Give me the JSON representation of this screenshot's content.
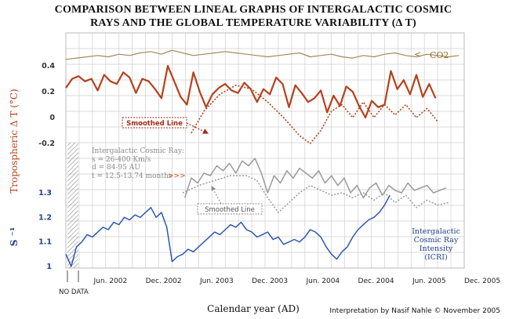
{
  "title": {
    "line1": "COMPARISON BETWEEN LINEAL GRAPHS OF INTERGALACTIC COSMIC",
    "line2": "RAYS AND THE GLOBAL TEMPERATURE VARIABILITY (Δ T)"
  },
  "credit": "Interpretation by Nasif Nahle © November 2005",
  "xlabel": "Calendar year (AD)",
  "ylabel_temp": "Tropospheric Δ T (°C)",
  "ylabel_icri": "S ⁻¹",
  "no_data_label": "NO DATA",
  "co2_label": "CO2",
  "co2_arrow": "<",
  "smoothed_red_label": "Smoothed Line",
  "smoothed_grey_label": "Smoothed Line",
  "gcr_info": {
    "line1": "Intergalactic Cosmic Ray:",
    "line2": "s = 26-400 Km/s",
    "line3": "d = 84-95 AU",
    "line4": "t = 12.5-13.74 months",
    "arrows": ">>>"
  },
  "icri_label": {
    "line1": "Intergalactic",
    "line2": "Cosmic Ray",
    "line3": "Intensity",
    "line4": "(ICRI)"
  },
  "colors": {
    "temperature": "#b5411c",
    "co2": "#a08a5a",
    "gcr": "#9a9a9a",
    "icri": "#2e58b0",
    "grid": "#cfcfcf"
  },
  "chart_data": {
    "type": "line",
    "x_ticks": [
      "Jun. 2002",
      "Dec. 2002",
      "Jun. 2003",
      "Dec. 2003",
      "Jun. 2004",
      "Dec. 2004",
      "Jun. 2005",
      "Dec. 2005"
    ],
    "y_ticks_temp": [
      "0.4",
      "0.2",
      "0",
      "-0.2"
    ],
    "y_ticks_icri": [
      "1.3",
      "1.2",
      "1.1",
      "1"
    ],
    "series": [
      {
        "name": "CO2",
        "x": [
          2002.0,
          2002.1,
          2002.2,
          2002.3,
          2002.4,
          2002.5,
          2002.6,
          2002.7,
          2002.8,
          2002.9,
          2003.0,
          2003.1,
          2003.2,
          2003.3,
          2003.4,
          2003.5,
          2003.6,
          2003.7,
          2003.8,
          2003.9,
          2004.0,
          2004.1,
          2004.2,
          2004.3,
          2004.4,
          2004.5,
          2004.6,
          2004.7,
          2004.8,
          2004.9,
          2005.0,
          2005.1,
          2005.2,
          2005.3,
          2005.4,
          2005.5,
          2005.6,
          2005.7
        ],
        "y": [
          0.45,
          0.46,
          0.47,
          0.48,
          0.47,
          0.49,
          0.48,
          0.5,
          0.51,
          0.49,
          0.52,
          0.5,
          0.48,
          0.49,
          0.5,
          0.51,
          0.5,
          0.49,
          0.48,
          0.47,
          0.48,
          0.49,
          0.5,
          0.47,
          0.48,
          0.49,
          0.47,
          0.46,
          0.48,
          0.47,
          0.49,
          0.5,
          0.48,
          0.47,
          0.49,
          0.48,
          0.47,
          0.48
        ]
      },
      {
        "name": "Tropospheric ΔT",
        "x": [
          2002.0,
          2002.06,
          2002.12,
          2002.18,
          2002.24,
          2002.3,
          2002.36,
          2002.42,
          2002.48,
          2002.54,
          2002.6,
          2002.66,
          2002.72,
          2002.78,
          2002.84,
          2002.9,
          2002.96,
          2003.02,
          2003.08,
          2003.14,
          2003.2,
          2003.26,
          2003.32,
          2003.38,
          2003.44,
          2003.5,
          2003.56,
          2003.62,
          2003.68,
          2003.74,
          2003.8,
          2003.86,
          2003.92,
          2003.98,
          2004.04,
          2004.1,
          2004.16,
          2004.22,
          2004.28,
          2004.34,
          2004.4,
          2004.46,
          2004.52,
          2004.58,
          2004.64,
          2004.7,
          2004.76,
          2004.82,
          2004.88,
          2004.94,
          2005.0,
          2005.06,
          2005.12,
          2005.18,
          2005.24,
          2005.3,
          2005.36,
          2005.42,
          2005.48
        ],
        "y": [
          0.23,
          0.3,
          0.32,
          0.28,
          0.3,
          0.21,
          0.33,
          0.28,
          0.26,
          0.35,
          0.31,
          0.19,
          0.3,
          0.28,
          0.22,
          0.15,
          0.4,
          0.28,
          0.16,
          0.1,
          0.35,
          0.2,
          0.08,
          0.18,
          0.23,
          0.26,
          0.21,
          0.19,
          0.27,
          0.22,
          0.12,
          0.22,
          0.18,
          0.31,
          0.26,
          0.08,
          0.25,
          0.19,
          0.12,
          0.15,
          0.21,
          0.04,
          0.17,
          0.09,
          0.24,
          0.2,
          0.09,
          0.0,
          0.13,
          0.08,
          0.1,
          0.36,
          0.22,
          0.29,
          0.18,
          0.33,
          0.16,
          0.26,
          0.15
        ]
      },
      {
        "name": "Smoothed Line (ΔT)",
        "x": [
          2003.18,
          2003.3,
          2003.45,
          2003.6,
          2003.75,
          2003.9,
          2004.05,
          2004.2,
          2004.3,
          2004.4,
          2004.5,
          2004.6,
          2004.7,
          2004.8,
          2004.9,
          2005.0,
          2005.1,
          2005.2,
          2005.3,
          2005.4,
          2005.5
        ],
        "y": [
          -0.12,
          0.05,
          0.18,
          0.25,
          0.22,
          0.12,
          0.0,
          -0.14,
          -0.2,
          -0.1,
          0.05,
          0.1,
          0.0,
          0.12,
          0.0,
          0.1,
          0.02,
          0.1,
          0.0,
          0.07,
          -0.03
        ]
      },
      {
        "name": "Intergalactic Cosmic Ray",
        "x": [
          2003.12,
          2003.18,
          2003.24,
          2003.3,
          2003.36,
          2003.42,
          2003.48,
          2003.54,
          2003.6,
          2003.66,
          2003.72,
          2003.78,
          2003.84,
          2003.9,
          2003.96,
          2004.02,
          2004.08,
          2004.14,
          2004.2,
          2004.26,
          2004.32,
          2004.38,
          2004.44,
          2004.5,
          2004.56,
          2004.62,
          2004.68,
          2004.74,
          2004.8,
          2004.86,
          2004.92,
          2004.98,
          2005.04,
          2005.1,
          2005.16,
          2005.22,
          2005.28,
          2005.34,
          2005.4,
          2005.46,
          2005.52,
          2005.58
        ],
        "y": [
          1.28,
          1.36,
          1.34,
          1.38,
          1.37,
          1.41,
          1.39,
          1.42,
          1.38,
          1.43,
          1.41,
          1.44,
          1.38,
          1.3,
          1.37,
          1.34,
          1.39,
          1.36,
          1.4,
          1.38,
          1.36,
          1.39,
          1.34,
          1.37,
          1.33,
          1.36,
          1.3,
          1.33,
          1.28,
          1.32,
          1.34,
          1.29,
          1.33,
          1.31,
          1.3,
          1.34,
          1.31,
          1.32,
          1.33,
          1.3,
          1.31,
          1.32
        ]
      },
      {
        "name": "Smoothed Line (GCR)",
        "x": [
          2003.1,
          2003.25,
          2003.4,
          2003.55,
          2003.7,
          2003.8,
          2003.9,
          2004.0,
          2004.1,
          2004.2,
          2004.3,
          2004.4,
          2004.5,
          2004.6,
          2004.7,
          2004.8,
          2004.9,
          2005.0,
          2005.1,
          2005.2,
          2005.3,
          2005.4,
          2005.5,
          2005.6
        ],
        "y": [
          1.3,
          1.33,
          1.35,
          1.37,
          1.37,
          1.35,
          1.28,
          1.22,
          1.26,
          1.3,
          1.33,
          1.31,
          1.29,
          1.3,
          1.28,
          1.3,
          1.27,
          1.3,
          1.26,
          1.29,
          1.24,
          1.27,
          1.25,
          1.26
        ]
      },
      {
        "name": "Intergalactic Cosmic Ray Intensity (ICRI)",
        "x": [
          2002.0,
          2002.05,
          2002.1,
          2002.15,
          2002.2,
          2002.25,
          2002.3,
          2002.35,
          2002.4,
          2002.45,
          2002.5,
          2002.55,
          2002.6,
          2002.65,
          2002.7,
          2002.75,
          2002.8,
          2002.85,
          2002.9,
          2002.95,
          2003.0,
          2003.05,
          2003.1,
          2003.15,
          2003.2,
          2003.25,
          2003.3,
          2003.35,
          2003.4,
          2003.45,
          2003.5,
          2003.55,
          2003.6,
          2003.65,
          2003.7,
          2003.75,
          2003.8,
          2003.85,
          2003.9,
          2003.95,
          2004.0,
          2004.05,
          2004.1,
          2004.15,
          2004.2,
          2004.25,
          2004.3,
          2004.35,
          2004.4,
          2004.45,
          2004.5,
          2004.55,
          2004.6,
          2004.65,
          2004.7,
          2004.75,
          2004.8,
          2004.85,
          2004.9,
          2004.95,
          2005.0,
          2005.05
        ],
        "y": [
          1.05,
          1.0,
          1.08,
          1.1,
          1.13,
          1.12,
          1.14,
          1.16,
          1.15,
          1.18,
          1.17,
          1.2,
          1.19,
          1.21,
          1.2,
          1.22,
          1.24,
          1.2,
          1.22,
          1.16,
          1.02,
          1.04,
          1.05,
          1.07,
          1.06,
          1.08,
          1.1,
          1.12,
          1.14,
          1.13,
          1.15,
          1.17,
          1.16,
          1.18,
          1.15,
          1.14,
          1.12,
          1.13,
          1.14,
          1.11,
          1.12,
          1.09,
          1.1,
          1.11,
          1.1,
          1.12,
          1.15,
          1.14,
          1.12,
          1.08,
          1.05,
          1.03,
          1.06,
          1.08,
          1.12,
          1.15,
          1.17,
          1.19,
          1.2,
          1.22,
          1.25,
          1.29
        ]
      }
    ]
  }
}
